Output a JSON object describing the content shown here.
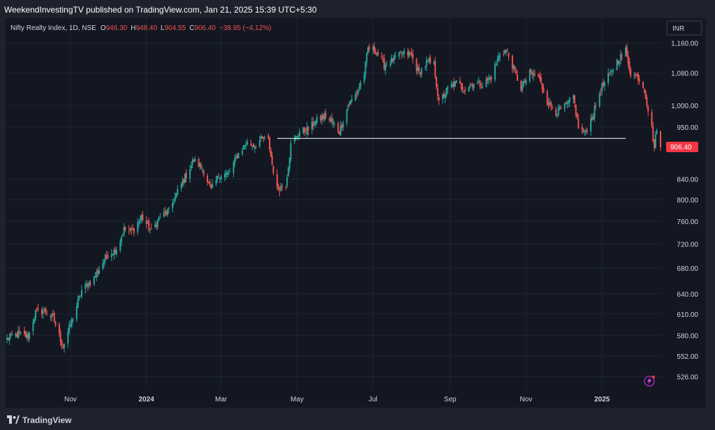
{
  "header": {
    "publish_line": "WeekendInvestingTV published on TradingView.com, Jan 21, 2025 15:39 UTC+5:30"
  },
  "legend": {
    "symbol": "Nifty Realty Index, 1D, NSE",
    "o_label": "O",
    "o_value": "946.30",
    "h_label": "H",
    "h_value": "948.40",
    "l_label": "L",
    "l_value": "904.55",
    "c_label": "C",
    "c_value": "906.40",
    "change": "−38.95 (−4.12%)"
  },
  "currency_button": "INR",
  "last_price_label": "906.40",
  "footer": {
    "brand": "TradingView"
  },
  "colors": {
    "up": "#26a69a",
    "down": "#ef5350",
    "background": "#131722",
    "grid": "#1f2433",
    "axis_text": "#d1d4dc",
    "support_line": "#ffffff"
  },
  "chart_data": {
    "type": "candlestick",
    "scale": "log",
    "y_ticks": [
      526,
      552,
      580,
      610,
      640,
      680,
      720,
      760,
      800,
      840,
      950,
      1000,
      1080,
      1160
    ],
    "y_tick_labels": [
      "526.00",
      "552.00",
      "580.00",
      "610.00",
      "640.00",
      "680.00",
      "720.00",
      "760.00",
      "800.00",
      "840.00",
      "950.00",
      "1,000.00",
      "1,080.00",
      "1,160.00"
    ],
    "ylim": [
      510,
      1230
    ],
    "x_labels": [
      "Nov",
      "2024",
      "Mar",
      "May",
      "Jul",
      "Sep",
      "Nov",
      "2025"
    ],
    "x_label_dates": [
      "2023-11-01",
      "2024-01-01",
      "2024-03-01",
      "2024-05-01",
      "2024-07-01",
      "2024-09-01",
      "2024-11-01",
      "2025-01-01"
    ],
    "xlim": [
      "2023-09-11",
      "2025-02-17"
    ],
    "grid": true,
    "last_price": 906.4,
    "support_line": {
      "value": 925,
      "from": "2024-04-15",
      "to": "2025-01-20"
    },
    "path": [
      [
        "2023-09-11",
        575
      ],
      [
        "2023-09-20",
        582
      ],
      [
        "2023-09-28",
        578
      ],
      [
        "2023-10-04",
        612
      ],
      [
        "2023-10-11",
        615
      ],
      [
        "2023-10-18",
        605
      ],
      [
        "2023-10-26",
        565
      ],
      [
        "2023-11-03",
        605
      ],
      [
        "2023-11-10",
        645
      ],
      [
        "2023-11-20",
        665
      ],
      [
        "2023-11-30",
        700
      ],
      [
        "2023-12-08",
        712
      ],
      [
        "2023-12-14",
        745
      ],
      [
        "2023-12-21",
        742
      ],
      [
        "2023-12-28",
        768
      ],
      [
        "2024-01-05",
        742
      ],
      [
        "2024-01-12",
        768
      ],
      [
        "2024-01-19",
        778
      ],
      [
        "2024-01-26",
        815
      ],
      [
        "2024-02-02",
        848
      ],
      [
        "2024-02-08",
        878
      ],
      [
        "2024-02-15",
        862
      ],
      [
        "2024-02-22",
        818
      ],
      [
        "2024-02-29",
        850
      ],
      [
        "2024-03-07",
        850
      ],
      [
        "2024-03-14",
        888
      ],
      [
        "2024-03-21",
        915
      ],
      [
        "2024-03-28",
        910
      ],
      [
        "2024-04-03",
        925
      ],
      [
        "2024-04-08",
        920
      ],
      [
        "2024-04-11",
        870
      ],
      [
        "2024-04-15",
        820
      ],
      [
        "2024-04-22",
        830
      ],
      [
        "2024-04-26",
        910
      ],
      [
        "2024-05-03",
        940
      ],
      [
        "2024-05-10",
        945
      ],
      [
        "2024-05-17",
        965
      ],
      [
        "2024-05-24",
        975
      ],
      [
        "2024-05-31",
        955
      ],
      [
        "2024-06-04",
        940
      ],
      [
        "2024-06-11",
        1000
      ],
      [
        "2024-06-18",
        1030
      ],
      [
        "2024-06-24",
        1080
      ],
      [
        "2024-06-27",
        1145
      ],
      [
        "2024-07-03",
        1140
      ],
      [
        "2024-07-10",
        1100
      ],
      [
        "2024-07-17",
        1115
      ],
      [
        "2024-07-24",
        1130
      ],
      [
        "2024-07-31",
        1130
      ],
      [
        "2024-08-07",
        1080
      ],
      [
        "2024-08-14",
        1110
      ],
      [
        "2024-08-19",
        1100
      ],
      [
        "2024-08-23",
        1005
      ],
      [
        "2024-08-30",
        1040
      ],
      [
        "2024-09-06",
        1055
      ],
      [
        "2024-09-13",
        1040
      ],
      [
        "2024-09-20",
        1055
      ],
      [
        "2024-09-27",
        1050
      ],
      [
        "2024-10-04",
        1070
      ],
      [
        "2024-10-11",
        1130
      ],
      [
        "2024-10-16",
        1140
      ],
      [
        "2024-10-21",
        1100
      ],
      [
        "2024-10-28",
        1040
      ],
      [
        "2024-11-04",
        1080
      ],
      [
        "2024-11-11",
        1070
      ],
      [
        "2024-11-18",
        1010
      ],
      [
        "2024-11-25",
        985
      ],
      [
        "2024-12-02",
        995
      ],
      [
        "2024-12-09",
        1020
      ],
      [
        "2024-12-13",
        950
      ],
      [
        "2024-12-18",
        935
      ],
      [
        "2024-12-25",
        980
      ],
      [
        "2024-12-31",
        1040
      ],
      [
        "2025-01-06",
        1070
      ],
      [
        "2025-01-13",
        1110
      ],
      [
        "2025-01-20",
        1140
      ],
      [
        "2025-01-24",
        1080
      ],
      [
        "2025-01-30",
        1070
      ],
      [
        "2025-02-04",
        1040
      ],
      [
        "2025-02-07",
        990
      ],
      [
        "2025-02-10",
        948
      ],
      [
        "2025-02-12",
        905
      ],
      [
        "2025-02-14",
        950
      ],
      [
        "2025-02-17",
        906
      ]
    ]
  }
}
